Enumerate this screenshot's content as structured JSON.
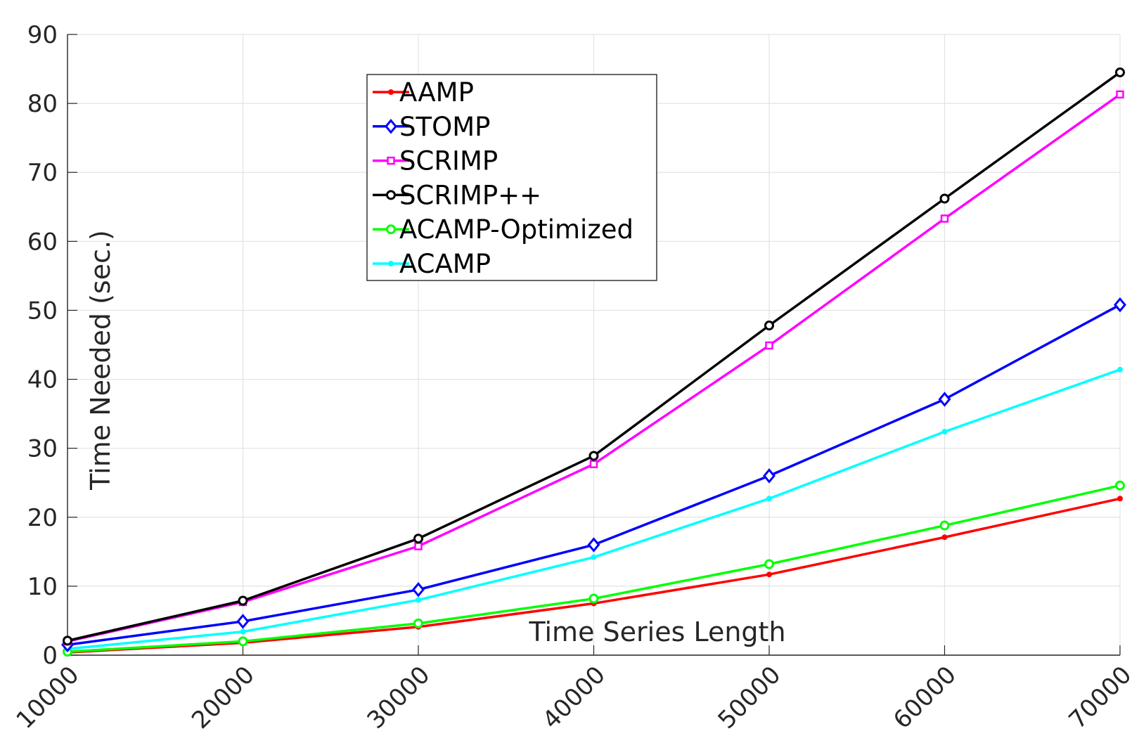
{
  "chart_data": {
    "type": "line",
    "title": "",
    "xlabel": "Time Series Length",
    "ylabel": "Time Needed (sec.)",
    "x": [
      10000,
      20000,
      30000,
      40000,
      50000,
      60000,
      70000
    ],
    "xlim": [
      10000,
      70000
    ],
    "ylim": [
      0,
      90
    ],
    "xticks": [
      "10000",
      "20000",
      "30000",
      "40000",
      "50000",
      "60000",
      "70000"
    ],
    "yticks": [
      "0",
      "10",
      "20",
      "30",
      "40",
      "50",
      "60",
      "70",
      "80",
      "90"
    ],
    "grid": true,
    "legend_position": "top-center",
    "series": [
      {
        "name": "AAMP",
        "color": "#ff0000",
        "marker": "dot",
        "values": [
          0.4,
          1.8,
          4.1,
          7.5,
          11.7,
          17.1,
          22.7
        ]
      },
      {
        "name": "STOMP",
        "color": "#0000ff",
        "marker": "diamond",
        "values": [
          1.5,
          4.9,
          9.5,
          16.0,
          26.0,
          37.1,
          50.8
        ]
      },
      {
        "name": "SCRIMP",
        "color": "#ff00ff",
        "marker": "square",
        "values": [
          2.0,
          7.7,
          15.8,
          27.7,
          44.9,
          63.3,
          81.3
        ]
      },
      {
        "name": "SCRIMP++",
        "color": "#000000",
        "marker": "circle",
        "values": [
          2.1,
          7.9,
          16.9,
          28.9,
          47.8,
          66.2,
          84.5
        ]
      },
      {
        "name": "ACAMP-Optimized",
        "color": "#00ff00",
        "marker": "circle",
        "values": [
          0.5,
          2.0,
          4.6,
          8.2,
          13.2,
          18.8,
          24.6
        ]
      },
      {
        "name": "ACAMP",
        "color": "#00ffff",
        "marker": "dot",
        "values": [
          0.9,
          3.4,
          8.0,
          14.2,
          22.7,
          32.4,
          41.4
        ]
      }
    ]
  }
}
